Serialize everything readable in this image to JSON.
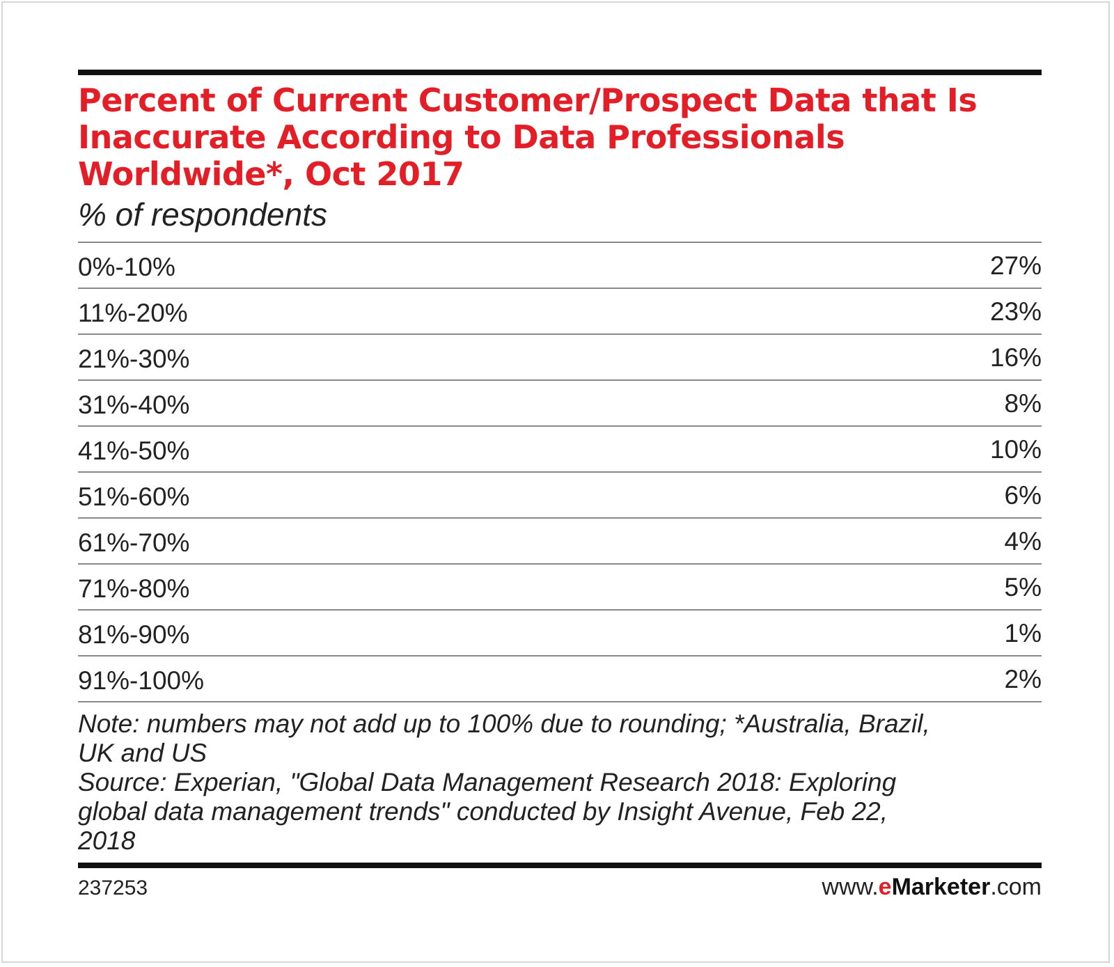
{
  "chart_data": {
    "type": "table",
    "title_lines": [
      "Percent of Current Customer/Prospect Data that Is",
      "Inaccurate According to Data Professionals",
      "Worldwide*, Oct 2017"
    ],
    "subtitle": "% of respondents",
    "categories": [
      "0%-10%",
      "11%-20%",
      "21%-30%",
      "31%-40%",
      "41%-50%",
      "51%-60%",
      "61%-70%",
      "71%-80%",
      "81%-90%",
      "91%-100%"
    ],
    "values": [
      27,
      23,
      16,
      8,
      10,
      6,
      4,
      5,
      1,
      2
    ],
    "value_labels": [
      "27%",
      "23%",
      "16%",
      "8%",
      "10%",
      "6%",
      "4%",
      "5%",
      "1%",
      "2%"
    ]
  },
  "notes": {
    "note_lines": [
      "Note: numbers may not add up to 100% due to rounding; *Australia, Brazil,",
      "UK and US"
    ],
    "source_lines": [
      "Source: Experian, \"Global Data Management Research 2018: Exploring",
      "global data management trends\" conducted by Insight Avenue, Feb 22,",
      "2018"
    ]
  },
  "footer": {
    "chart_id": "237253",
    "brand_prefix": "www.",
    "brand_e": "e",
    "brand_name": "Marketer",
    "brand_suffix": ".com"
  },
  "colors": {
    "title": "#e31e26",
    "text": "#222222",
    "rule": "#111111",
    "row_divider": "#888888",
    "frame_border": "#d6d6d6"
  }
}
